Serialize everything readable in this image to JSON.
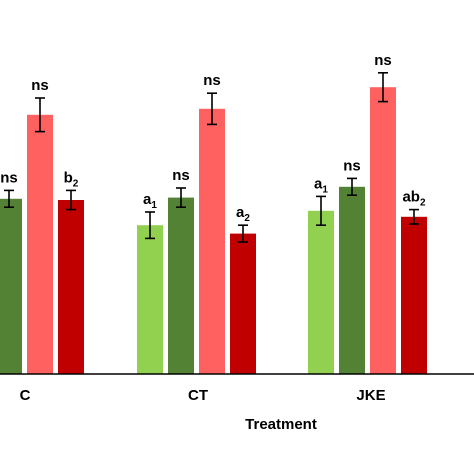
{
  "chart_data": {
    "type": "bar",
    "xlabel": "Treatment",
    "ylabel": "",
    "title": "",
    "categories": [
      "C",
      "CT",
      "JKE"
    ],
    "ylim": [
      0,
      300
    ],
    "grid": false,
    "legend": "none",
    "series": [
      {
        "color": "#92d050",
        "values": [
          null,
          124,
          136
        ],
        "errors": [
          null,
          11,
          12
        ],
        "labels": [
          null,
          "a1",
          "a1"
        ]
      },
      {
        "color": "#548235",
        "values": [
          146,
          147,
          156
        ],
        "errors": [
          7,
          8,
          7
        ],
        "labels": [
          "ns",
          "ns",
          "ns"
        ]
      },
      {
        "color": "#ff6161",
        "values": [
          216,
          221,
          239
        ],
        "errors": [
          14,
          13,
          12
        ],
        "labels": [
          "ns",
          "ns",
          "ns"
        ]
      },
      {
        "color": "#c00000",
        "values": [
          145,
          117,
          131
        ],
        "errors": [
          8,
          7,
          6
        ],
        "labels": [
          "b2",
          "a2",
          "ab2"
        ]
      }
    ]
  }
}
